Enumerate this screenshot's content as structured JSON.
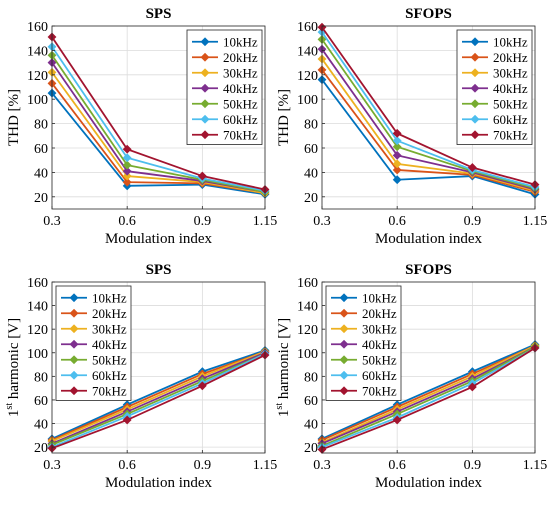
{
  "colors": [
    "#0072BD",
    "#D95319",
    "#EDB120",
    "#7E2F8E",
    "#77AC30",
    "#4DBEEE",
    "#A2142F"
  ],
  "chart_data": [
    {
      "type": "line",
      "title": "SPS",
      "xlabel": "Modulation index",
      "ylabel": "THD [%]",
      "x": [
        0.3,
        0.6,
        0.9,
        1.15
      ],
      "xticks": [
        "0.3",
        "0.6",
        "0.9",
        "1.15"
      ],
      "ylim": [
        10,
        160
      ],
      "yticks": [
        20,
        40,
        60,
        80,
        100,
        120,
        140,
        160
      ],
      "grid": true,
      "legend": "top-right",
      "series": [
        {
          "name": "10kHz",
          "values": [
            105,
            29,
            30,
            22
          ]
        },
        {
          "name": "20kHz",
          "values": [
            113,
            32,
            31,
            23
          ]
        },
        {
          "name": "30kHz",
          "values": [
            122,
            37,
            32,
            23
          ]
        },
        {
          "name": "40kHz",
          "values": [
            130,
            41,
            33,
            24
          ]
        },
        {
          "name": "50kHz",
          "values": [
            136,
            46,
            34,
            24
          ]
        },
        {
          "name": "60kHz",
          "values": [
            143,
            52,
            35,
            25
          ]
        },
        {
          "name": "70kHz",
          "values": [
            151,
            59,
            37,
            26
          ]
        }
      ]
    },
    {
      "type": "line",
      "title": "SFOPS",
      "xlabel": "Modulation index",
      "ylabel": "THD [%]",
      "x": [
        0.3,
        0.6,
        0.9,
        1.15
      ],
      "xticks": [
        "0.3",
        "0.6",
        "0.9",
        "1.15"
      ],
      "ylim": [
        10,
        160
      ],
      "yticks": [
        20,
        40,
        60,
        80,
        100,
        120,
        140,
        160
      ],
      "grid": true,
      "legend": "top-right",
      "series": [
        {
          "name": "10kHz",
          "values": [
            116,
            34,
            37,
            22
          ]
        },
        {
          "name": "20kHz",
          "values": [
            124,
            42,
            38,
            24
          ]
        },
        {
          "name": "30kHz",
          "values": [
            133,
            47,
            39,
            25
          ]
        },
        {
          "name": "40kHz",
          "values": [
            141,
            54,
            40,
            26
          ]
        },
        {
          "name": "50kHz",
          "values": [
            149,
            61,
            41,
            27
          ]
        },
        {
          "name": "60kHz",
          "values": [
            155,
            66,
            42,
            28
          ]
        },
        {
          "name": "70kHz",
          "values": [
            159,
            72,
            44,
            30
          ]
        }
      ]
    },
    {
      "type": "line",
      "title": "SPS",
      "xlabel": "Modulation index",
      "ylabel": "harmonic [V]",
      "ylabel_prefix": "1",
      "ylabel_sup": "st",
      "x": [
        0.3,
        0.6,
        0.9,
        1.15
      ],
      "xticks": [
        "0.3",
        "0.6",
        "0.9",
        "1.15"
      ],
      "ylim": [
        15,
        160
      ],
      "yticks": [
        20,
        40,
        60,
        80,
        100,
        120,
        140,
        160
      ],
      "grid": true,
      "legend": "top-left",
      "series": [
        {
          "name": "10kHz",
          "values": [
            27,
            56,
            84,
            102
          ]
        },
        {
          "name": "20kHz",
          "values": [
            26,
            54,
            82,
            101
          ]
        },
        {
          "name": "30kHz",
          "values": [
            25,
            52,
            80,
            101
          ]
        },
        {
          "name": "40kHz",
          "values": [
            23,
            50,
            78,
            100
          ]
        },
        {
          "name": "50kHz",
          "values": [
            22,
            48,
            76,
            99
          ]
        },
        {
          "name": "60kHz",
          "values": [
            20,
            46,
            74,
            99
          ]
        },
        {
          "name": "70kHz",
          "values": [
            19,
            43,
            72,
            98
          ]
        }
      ]
    },
    {
      "type": "line",
      "title": "SFOPS",
      "xlabel": "Modulation index",
      "ylabel": "harmonic [V]",
      "ylabel_prefix": "1",
      "ylabel_sup": "st",
      "x": [
        0.3,
        0.6,
        0.9,
        1.15
      ],
      "xticks": [
        "0.3",
        "0.6",
        "0.9",
        "1.15"
      ],
      "ylim": [
        15,
        160
      ],
      "yticks": [
        20,
        40,
        60,
        80,
        100,
        120,
        140,
        160
      ],
      "grid": true,
      "legend": "top-left",
      "series": [
        {
          "name": "10kHz",
          "values": [
            27,
            56,
            84,
            107
          ]
        },
        {
          "name": "20kHz",
          "values": [
            26,
            54,
            82,
            106
          ]
        },
        {
          "name": "30kHz",
          "values": [
            24,
            52,
            80,
            106
          ]
        },
        {
          "name": "40kHz",
          "values": [
            23,
            50,
            78,
            105
          ]
        },
        {
          "name": "50kHz",
          "values": [
            21,
            48,
            76,
            105
          ]
        },
        {
          "name": "60kHz",
          "values": [
            20,
            45,
            74,
            104
          ]
        },
        {
          "name": "70kHz",
          "values": [
            18,
            43,
            71,
            104
          ]
        }
      ]
    }
  ]
}
